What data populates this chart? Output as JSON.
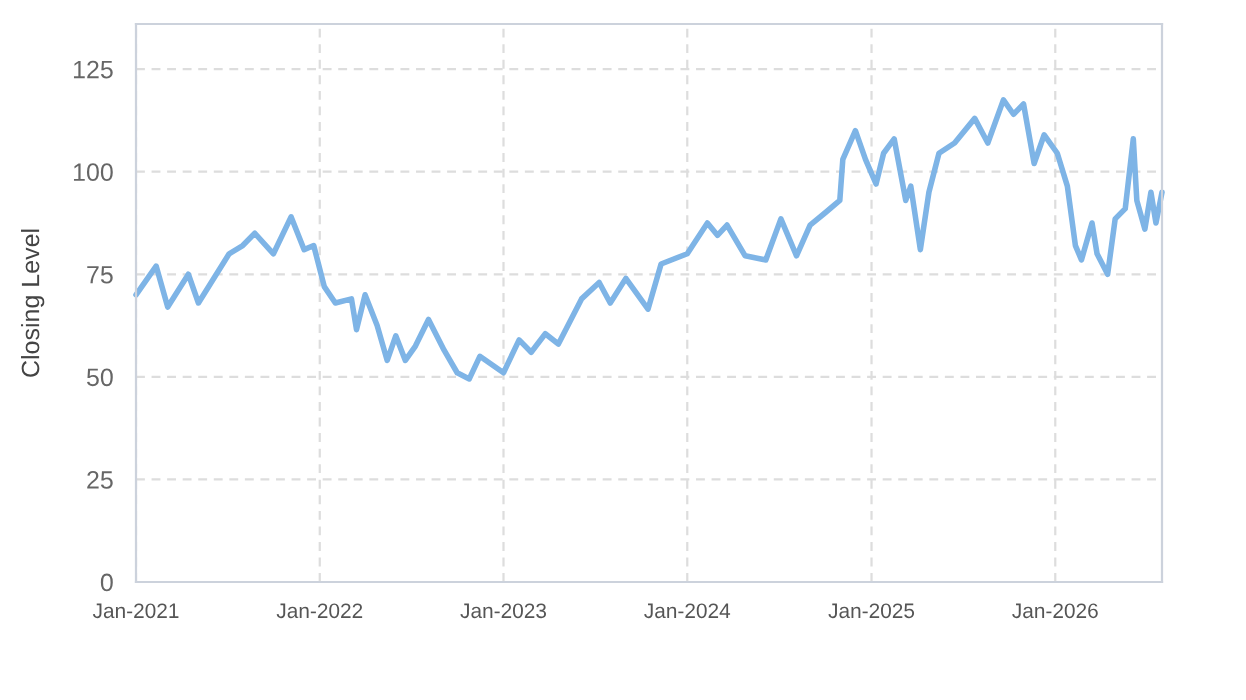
{
  "chart_data": {
    "type": "line",
    "ylabel": "Closing Level",
    "x": [
      "2021-01-01",
      "2021-02-10",
      "2021-03-05",
      "2021-04-15",
      "2021-05-05",
      "2021-07-05",
      "2021-08-01",
      "2021-08-25",
      "2021-10-01",
      "2021-11-05",
      "2021-12-01",
      "2021-12-20",
      "2022-01-10",
      "2022-02-01",
      "2022-03-05",
      "2022-03-15",
      "2022-04-01",
      "2022-04-25",
      "2022-05-15",
      "2022-06-01",
      "2022-06-20",
      "2022-07-10",
      "2022-08-05",
      "2022-09-05",
      "2022-10-01",
      "2022-10-25",
      "2022-11-15",
      "2023-01-01",
      "2023-02-01",
      "2023-02-25",
      "2023-03-25",
      "2023-04-20",
      "2023-06-05",
      "2023-07-10",
      "2023-08-01",
      "2023-09-01",
      "2023-10-15",
      "2023-11-10",
      "2024-01-01",
      "2024-02-10",
      "2024-03-01",
      "2024-03-20",
      "2024-04-25",
      "2024-06-05",
      "2024-07-05",
      "2024-08-05",
      "2024-09-01",
      "2024-10-01",
      "2024-10-30",
      "2024-11-05",
      "2024-11-30",
      "2024-12-20",
      "2025-01-10",
      "2025-01-25",
      "2025-02-15",
      "2025-03-10",
      "2025-03-20",
      "2025-04-08",
      "2025-04-25",
      "2025-05-15",
      "2025-06-15",
      "2025-07-25",
      "2025-08-20",
      "2025-09-20",
      "2025-10-10",
      "2025-10-30",
      "2025-11-20",
      "2025-12-10",
      "2026-01-05",
      "2026-01-25",
      "2026-02-10",
      "2026-02-22",
      "2026-03-15",
      "2026-03-25",
      "2026-04-15",
      "2026-04-30",
      "2026-05-20",
      "2026-06-05",
      "2026-06-12",
      "2026-06-28",
      "2026-07-10",
      "2026-07-20",
      "2026-08-01"
    ],
    "series": [
      {
        "color": "#7eb4e6",
        "values": [
          70,
          77,
          67,
          75,
          68,
          80,
          82,
          85,
          80,
          89,
          81,
          82,
          72,
          68,
          69,
          61.5,
          70,
          62.5,
          54,
          60,
          54,
          57.5,
          64,
          56.5,
          51,
          49.5,
          55,
          51,
          59,
          56,
          60.5,
          58,
          69,
          73,
          68,
          74,
          66.5,
          77.5,
          80,
          87.5,
          84.5,
          87,
          79.5,
          78.5,
          88.5,
          79.5,
          87,
          90,
          93,
          103,
          110,
          103,
          97,
          104.5,
          108,
          93,
          96.5,
          81,
          95,
          104.5,
          107,
          113,
          107,
          117.5,
          114,
          116.5,
          102,
          109,
          104.5,
          96.5,
          82,
          78.5,
          87.5,
          80,
          75,
          88.5,
          91,
          108,
          93,
          86,
          95,
          87.5,
          95
        ]
      }
    ],
    "xlim": [
      "2021-01-01",
      "2026-08-01"
    ],
    "xticks": [
      {
        "value": "2021-01-01",
        "label": "Jan-2021"
      },
      {
        "value": "2022-01-01",
        "label": "Jan-2022"
      },
      {
        "value": "2023-01-01",
        "label": "Jan-2023"
      },
      {
        "value": "2024-01-01",
        "label": "Jan-2024"
      },
      {
        "value": "2025-01-01",
        "label": "Jan-2025"
      },
      {
        "value": "2026-01-01",
        "label": "Jan-2026"
      }
    ],
    "ylim": [
      0,
      136
    ],
    "yticks": [
      0,
      25,
      50,
      75,
      100,
      125
    ],
    "grid": true,
    "line_style": "solid",
    "marker": "none"
  }
}
